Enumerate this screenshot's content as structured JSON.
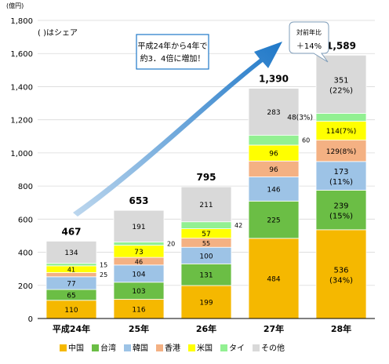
{
  "chart_data": {
    "type": "bar",
    "stacked": true,
    "unit_label": "(億円)",
    "share_note": "( )はシェア",
    "categories": [
      "平成24年",
      "25年",
      "26年",
      "27年",
      "28年"
    ],
    "ylim": [
      0,
      1800
    ],
    "yticks": [
      "0",
      "200",
      "400",
      "600",
      "800",
      "1,000",
      "1,200",
      "1,400",
      "1,600",
      "1,800"
    ],
    "totals": [
      467,
      653,
      795,
      1390,
      1589
    ],
    "total_labels": [
      "467",
      "653",
      "795",
      "1,390",
      "1,589"
    ],
    "series": [
      {
        "name": "中国",
        "color": "#F5B800",
        "values": [
          110,
          116,
          199,
          484,
          536
        ],
        "labels": [
          "110",
          "116",
          "199",
          "484",
          "536"
        ],
        "share_28": "(34%)"
      },
      {
        "name": "台湾",
        "color": "#6BBE45",
        "values": [
          65,
          103,
          131,
          225,
          239
        ],
        "labels": [
          "65",
          "103",
          "131",
          "225",
          "239"
        ],
        "share_28": "(15%)"
      },
      {
        "name": "韓国",
        "color": "#9DC3E6",
        "values": [
          77,
          104,
          100,
          146,
          173
        ],
        "labels": [
          "77",
          "104",
          "100",
          "146",
          "173"
        ],
        "share_28": "(11%)"
      },
      {
        "name": "香港",
        "color": "#F4B183",
        "values": [
          25,
          46,
          55,
          96,
          129
        ],
        "labels": [
          "25",
          "46",
          "55",
          "96",
          "129(8%)"
        ]
      },
      {
        "name": "米国",
        "color": "#FFFF00",
        "values": [
          41,
          73,
          57,
          96,
          114
        ],
        "labels": [
          "41",
          "73",
          "57",
          "96",
          "114(7%)"
        ]
      },
      {
        "name": "タイ",
        "color": "#92F092",
        "values": [
          15,
          20,
          42,
          60,
          48
        ],
        "labels": [
          "15",
          "20",
          "42",
          "60",
          "48(3%)"
        ]
      },
      {
        "name": "その他",
        "color": "#D9D9D9",
        "values": [
          134,
          191,
          211,
          283,
          351
        ],
        "labels": [
          "134",
          "191",
          "211",
          "283",
          "351"
        ],
        "share_28": "(22%)"
      }
    ],
    "annotations": {
      "growth_text_1": "平成24年から4年で",
      "growth_text_2": "約3．4倍に増加！",
      "yoy_label": "対前年比",
      "yoy_value": "＋14%"
    }
  }
}
